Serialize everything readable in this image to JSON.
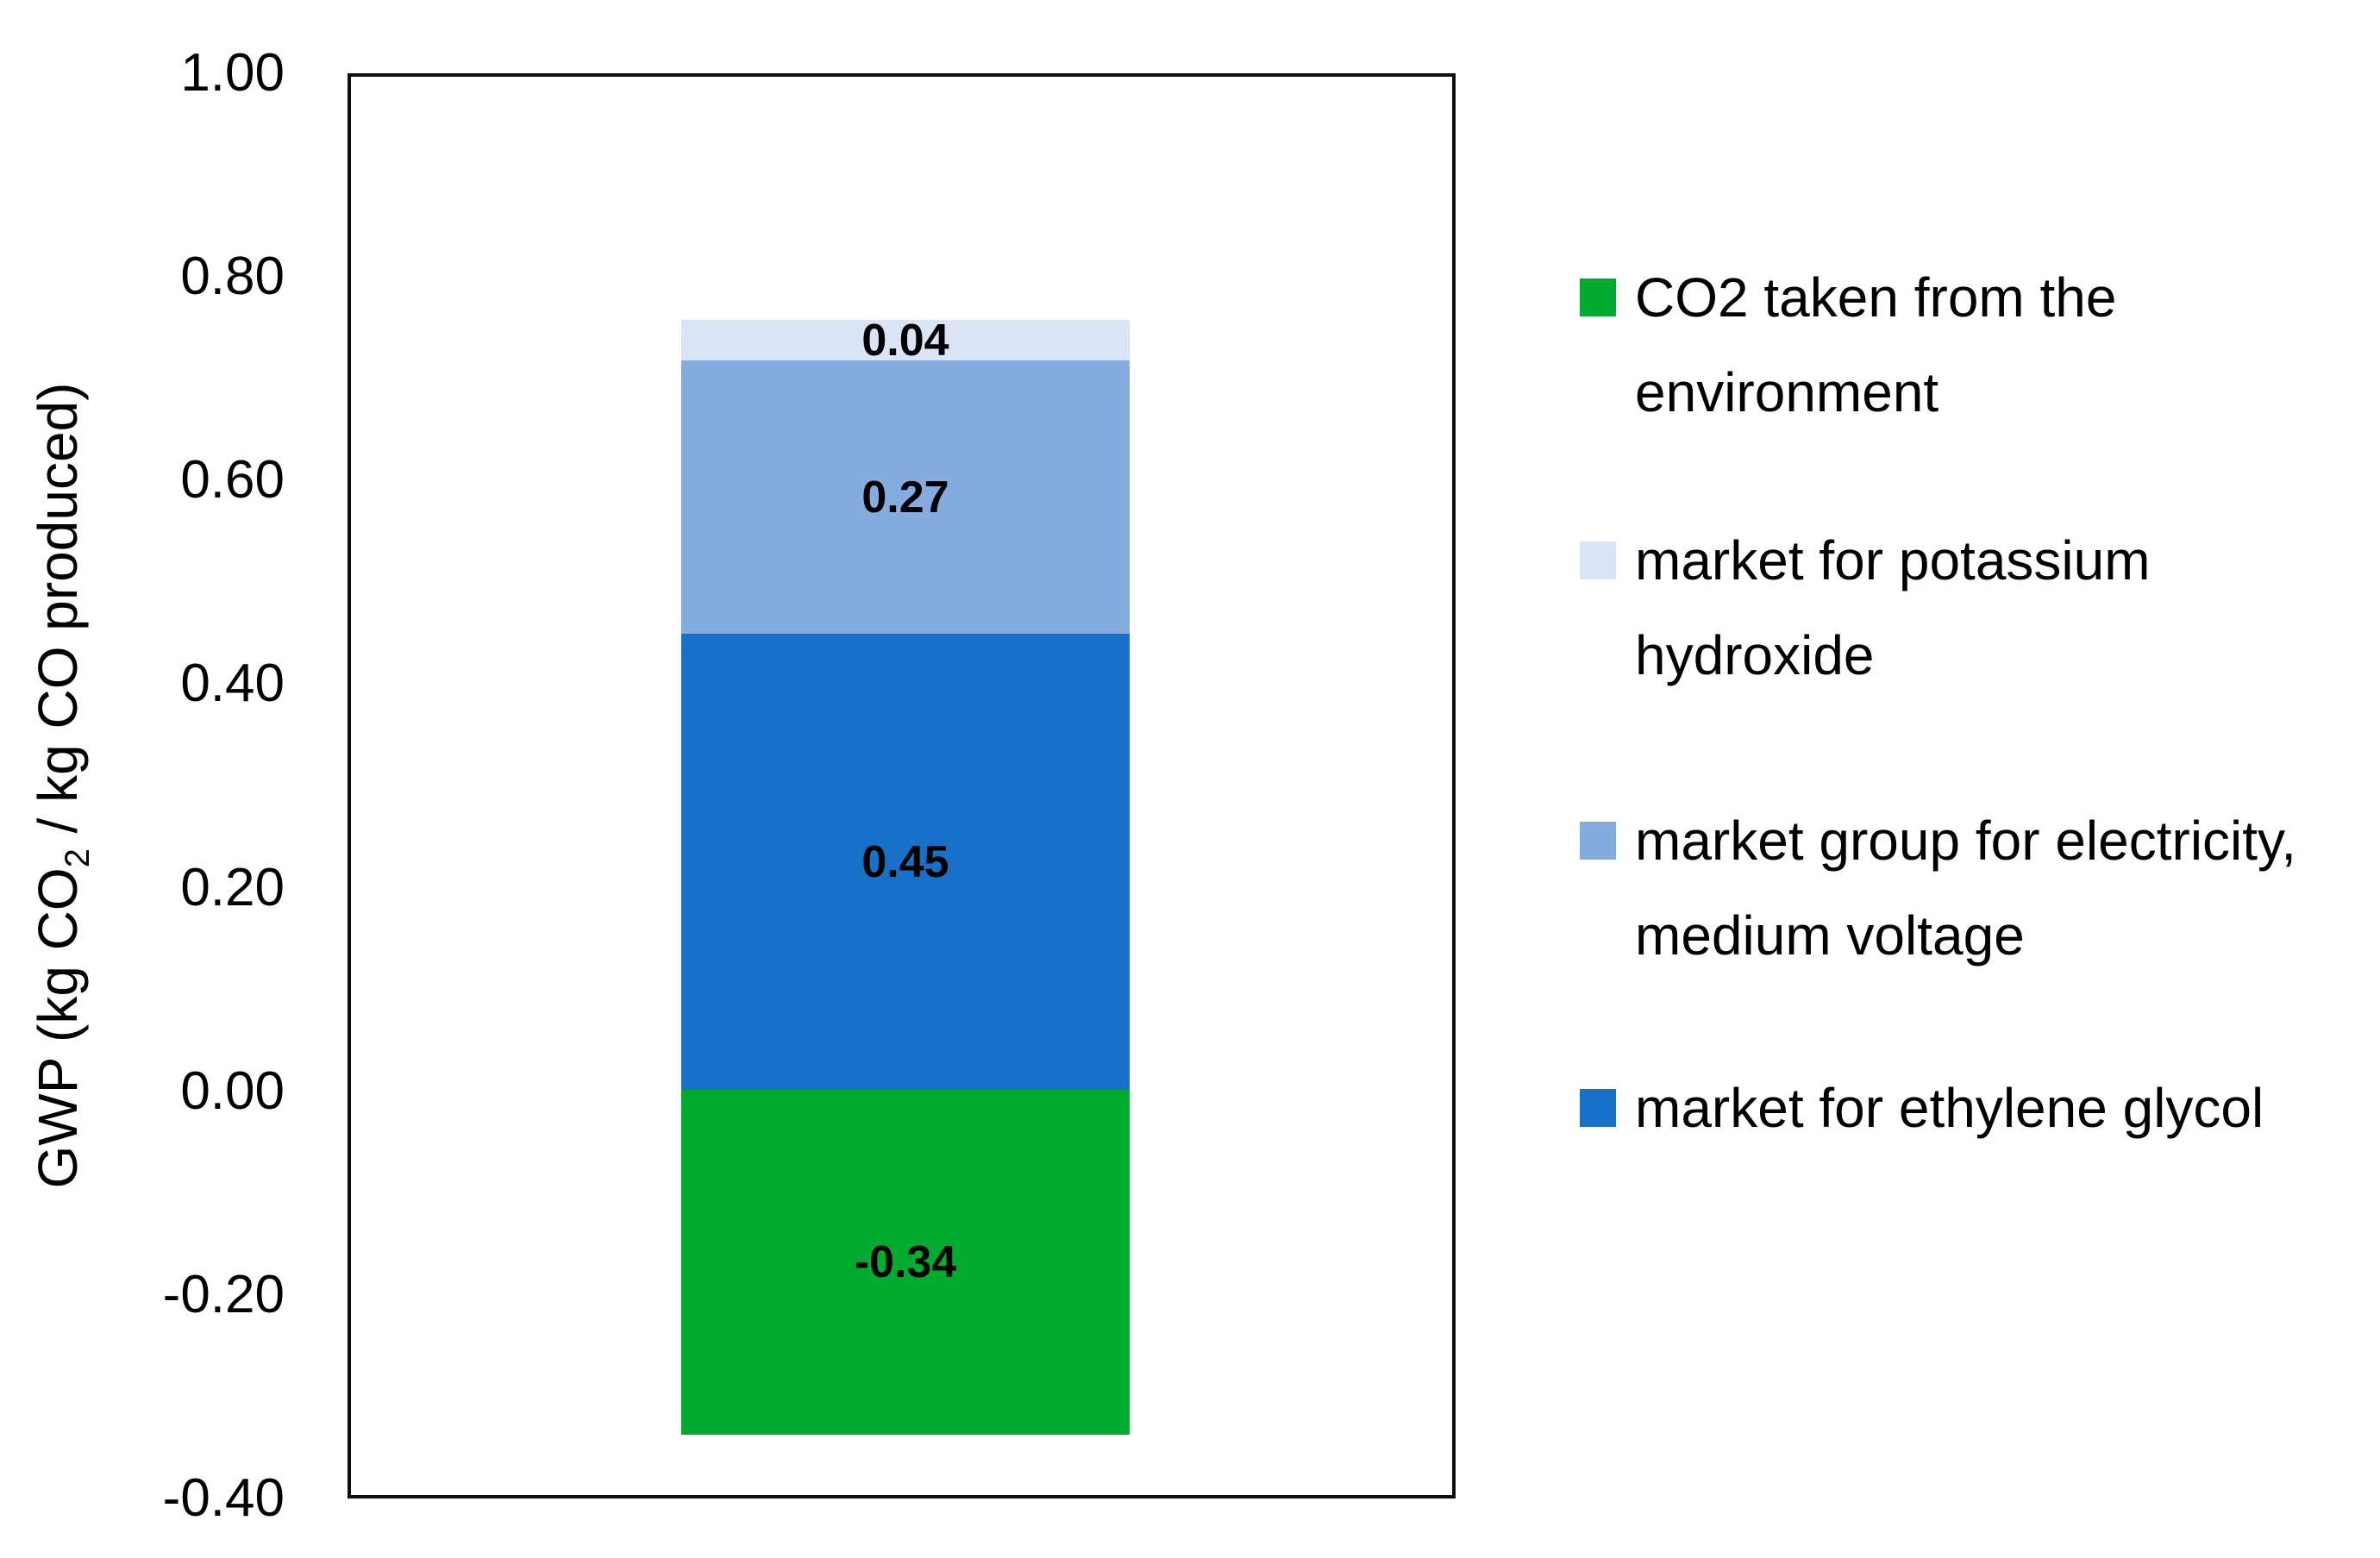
{
  "page": {
    "background": "#ffffff"
  },
  "chart_data": {
    "type": "bar",
    "stacked": true,
    "title": "",
    "xlabel": "",
    "ylabel": "GWP (kg CO2 / kg CO produced)",
    "ylabel_parts": {
      "prefix": "GWP (kg CO",
      "subscript": "2",
      "suffix": " / kg CO produced)"
    },
    "ylim": [
      -0.4,
      1.0
    ],
    "grid": false,
    "yticks": [
      {
        "value": 1.0,
        "label": "1.00"
      },
      {
        "value": 0.8,
        "label": "0.80"
      },
      {
        "value": 0.6,
        "label": "0.60"
      },
      {
        "value": 0.4,
        "label": "0.40"
      },
      {
        "value": 0.2,
        "label": "0.20"
      },
      {
        "value": 0.0,
        "label": "0.00"
      },
      {
        "value": -0.2,
        "label": "-0.20"
      },
      {
        "value": -0.4,
        "label": "-0.40"
      }
    ],
    "categories": [
      ""
    ],
    "series": [
      {
        "name": "market for ethylene glycol",
        "color": "#1771C9",
        "value": 0.45,
        "data_label": "0.45"
      },
      {
        "name": "market group for electricity, medium voltage",
        "color": "#85ACDF",
        "value": 0.27,
        "data_label": "0.27"
      },
      {
        "name": "market for potassium hydroxide",
        "color": "#D9E4F5",
        "value": 0.04,
        "data_label": "0.04"
      },
      {
        "name": "CO2 taken from the environment",
        "color": "#00AC30",
        "value": -0.34,
        "data_label": "-0.34"
      }
    ],
    "legend": {
      "position": "right",
      "items": [
        {
          "label": "CO2 taken from the environment",
          "color": "#00AC30"
        },
        {
          "label": "market for potassium hydroxide",
          "color": "#D9E4F5"
        },
        {
          "label": "market group for electricity, medium voltage",
          "color": "#85ACDF"
        },
        {
          "label": "market for ethylene glycol",
          "color": "#1771C9"
        }
      ]
    }
  }
}
